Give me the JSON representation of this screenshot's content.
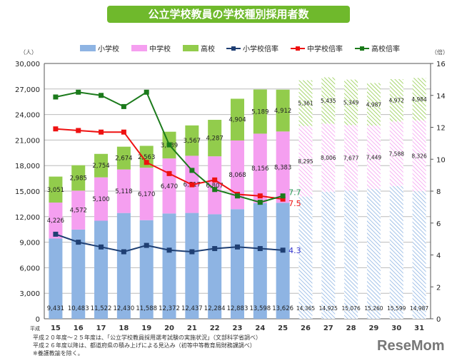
{
  "title": "公立学校教員の学校種別採用者数",
  "notes": [
    "平成２０年度～２５年度は、「公立学校教員採用選考試験の実施状況」（文部科学省調べ）",
    "平成２６年度以降は、都道府県の積み上げによる見込み（初等中等教育局財務課調べ）",
    "※養護教諭を除く。"
  ],
  "logo": "ReseMom",
  "chart_data": {
    "type": "bar",
    "title": "公立学校教員の学校種別採用者数",
    "x_prefix": "平成",
    "categories": [
      "15",
      "16",
      "17",
      "18",
      "19",
      "20",
      "21",
      "22",
      "23",
      "24",
      "25",
      "26",
      "27",
      "28",
      "29",
      "30",
      "31"
    ],
    "projected_from": "26",
    "left_axis": {
      "unit": "（人）",
      "ylim": [
        0,
        30000
      ],
      "ticks": [
        "0",
        "3,000",
        "6,000",
        "9,000",
        "12,000",
        "15,000",
        "18,000",
        "21,000",
        "24,000",
        "27,000",
        "30,000"
      ]
    },
    "right_axis": {
      "unit": "（倍）",
      "ylim": [
        0,
        16
      ],
      "ticks": [
        "0",
        "2",
        "4",
        "6",
        "8",
        "10",
        "12",
        "14",
        "16"
      ]
    },
    "grid": true,
    "legend_position": "top",
    "bar_series": [
      {
        "name": "小学校",
        "color": "#8eb4e3",
        "values": [
          9431,
          10483,
          11522,
          12430,
          11588,
          12372,
          12437,
          12284,
          12883,
          13598,
          13626,
          14365,
          14925,
          15076,
          15260,
          15599,
          14987
        ],
        "labels": [
          "9,431",
          "10,483",
          "11,522",
          "12,430",
          "11,588",
          "12,372",
          "12,437",
          "12,284",
          "12,883",
          "13,598",
          "13,626",
          "14,365",
          "14,925",
          "15,076",
          "15,260",
          "15,599",
          "14,987"
        ]
      },
      {
        "name": "中学校",
        "color": "#f59ff0",
        "values": [
          4226,
          4572,
          5100,
          5118,
          6170,
          6470,
          6717,
          6807,
          8068,
          8156,
          8383,
          8295,
          8006,
          7677,
          7449,
          7588,
          8326
        ],
        "labels": [
          "4,226",
          "4,572",
          "5,100",
          "5,118",
          "6,170",
          "6,470",
          "6,717",
          "6,807",
          "8,068",
          "8,156",
          "8,383",
          "8,295",
          "8,006",
          "7,677",
          "7,449",
          "7,588",
          "8,326"
        ]
      },
      {
        "name": "高校",
        "color": "#92cc4c",
        "values": [
          3051,
          2985,
          2754,
          2674,
          2563,
          3139,
          3567,
          4287,
          4904,
          5189,
          4912,
          5361,
          5435,
          5349,
          4987,
          4972,
          4984
        ],
        "labels": [
          "3,051",
          "2,985",
          "2,754",
          "2,674",
          "2,563",
          "3,139",
          "3,567",
          "4,287",
          "4,904",
          "5,189",
          "4,912",
          "5,361",
          "5,435",
          "5,349",
          "4,987",
          "4,972",
          "4,984"
        ]
      }
    ],
    "line_series": [
      {
        "name": "小学校倍率",
        "color": "#1f3f73",
        "values": [
          5.3,
          4.8,
          4.5,
          4.2,
          4.6,
          4.3,
          4.2,
          4.4,
          4.5,
          4.4,
          4.3
        ],
        "end_label": "4.3",
        "label_color": "#3333cc"
      },
      {
        "name": "中学校倍率",
        "color": "#ee1111",
        "values": [
          11.9,
          11.8,
          11.7,
          11.7,
          9.8,
          9.1,
          8.4,
          8.7,
          7.8,
          7.7,
          7.5
        ],
        "end_label": "7.5",
        "label_color": "#ee1111"
      },
      {
        "name": "高校倍率",
        "color": "#1b7a1b",
        "values": [
          13.9,
          14.2,
          14.0,
          13.3,
          14.2,
          10.9,
          9.3,
          8.1,
          7.7,
          7.3,
          7.7
        ],
        "end_label": "7.7",
        "label_color": "#2a9a5a"
      }
    ]
  }
}
